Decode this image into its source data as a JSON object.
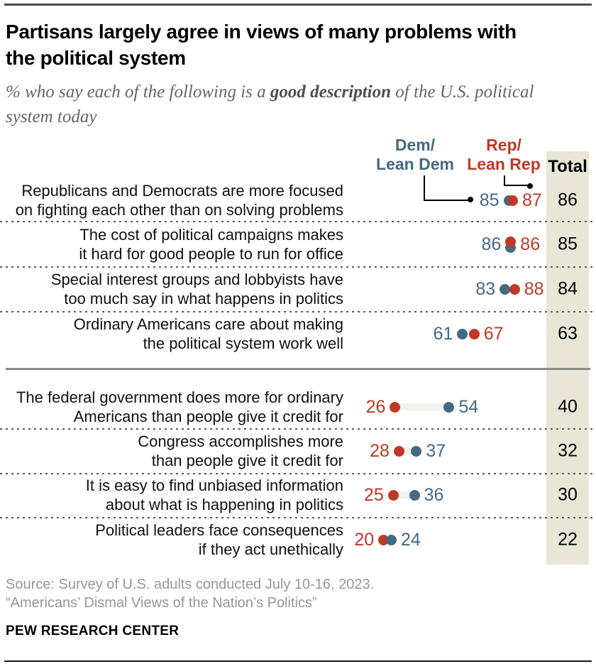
{
  "title": {
    "lines": [
      "Partisans largely agree in views of many problems with",
      "the political system"
    ]
  },
  "subtitle": {
    "prefix": "% who say each of the following is a ",
    "bold": "good description",
    "suffix": " of the U.S. political system today"
  },
  "legend": {
    "dem_line1": "Dem/",
    "dem_line2": "Lean Dem",
    "rep_line1": "Rep/",
    "rep_line2": "Lean Rep",
    "total_label": "Total"
  },
  "chart_data": {
    "type": "paired-dot-plot",
    "title": "Partisans largely agree in views of many problems with the political system",
    "subtitle": "% who say each of the following is a good description of the U.S. political system today",
    "series_names": [
      "Dem/Lean Dem",
      "Rep/Lean Rep",
      "Total"
    ],
    "x_range": [
      0,
      100
    ],
    "legend_position": "top",
    "grid": "off",
    "groups": [
      [
        0,
        1,
        2,
        3
      ],
      [
        4,
        5,
        6,
        7
      ]
    ],
    "rows": [
      {
        "statement": [
          "Republicans and Democrats are more focused",
          "on fighting each other than on solving problems"
        ],
        "dem": 85,
        "rep": 87,
        "total": 86
      },
      {
        "statement": [
          "The cost of political campaigns makes",
          "it hard for good people to run for office"
        ],
        "dem": 86,
        "rep": 86,
        "total": 85
      },
      {
        "statement": [
          "Special interest groups and lobbyists have",
          "too much say in what happens in politics"
        ],
        "dem": 83,
        "rep": 88,
        "total": 84
      },
      {
        "statement": [
          "Ordinary Americans care about making",
          "the political system work well"
        ],
        "dem": 61,
        "rep": 67,
        "total": 63
      },
      {
        "statement": [
          "The federal government does more for ordinary",
          "Americans than people give it credit for"
        ],
        "dem": 54,
        "rep": 26,
        "total": 40
      },
      {
        "statement": [
          "Congress accomplishes more",
          "than people give it credit for"
        ],
        "dem": 37,
        "rep": 28,
        "total": 32
      },
      {
        "statement": [
          "It is easy to find unbiased information",
          "about what is happening in politics"
        ],
        "dem": 36,
        "rep": 25,
        "total": 30
      },
      {
        "statement": [
          "Political leaders face consequences",
          "if they act unethically"
        ],
        "dem": 24,
        "rep": 20,
        "total": 22
      }
    ]
  },
  "footer": {
    "source_line1": "Source: Survey of U.S. adults conducted July 10-16, 2023.",
    "source_line2": "“Americans’ Dismal Views of the Nation’s Politics”",
    "brand": "PEW RESEARCH CENTER"
  },
  "colors": {
    "dem_blue": "#436983",
    "rep_red": "#bf3927",
    "total_column_bg": "#e9e6d8",
    "connector_gray": "#f2f1ee",
    "divider_gray": "#8a8a8a",
    "callout_black": "#000000"
  }
}
